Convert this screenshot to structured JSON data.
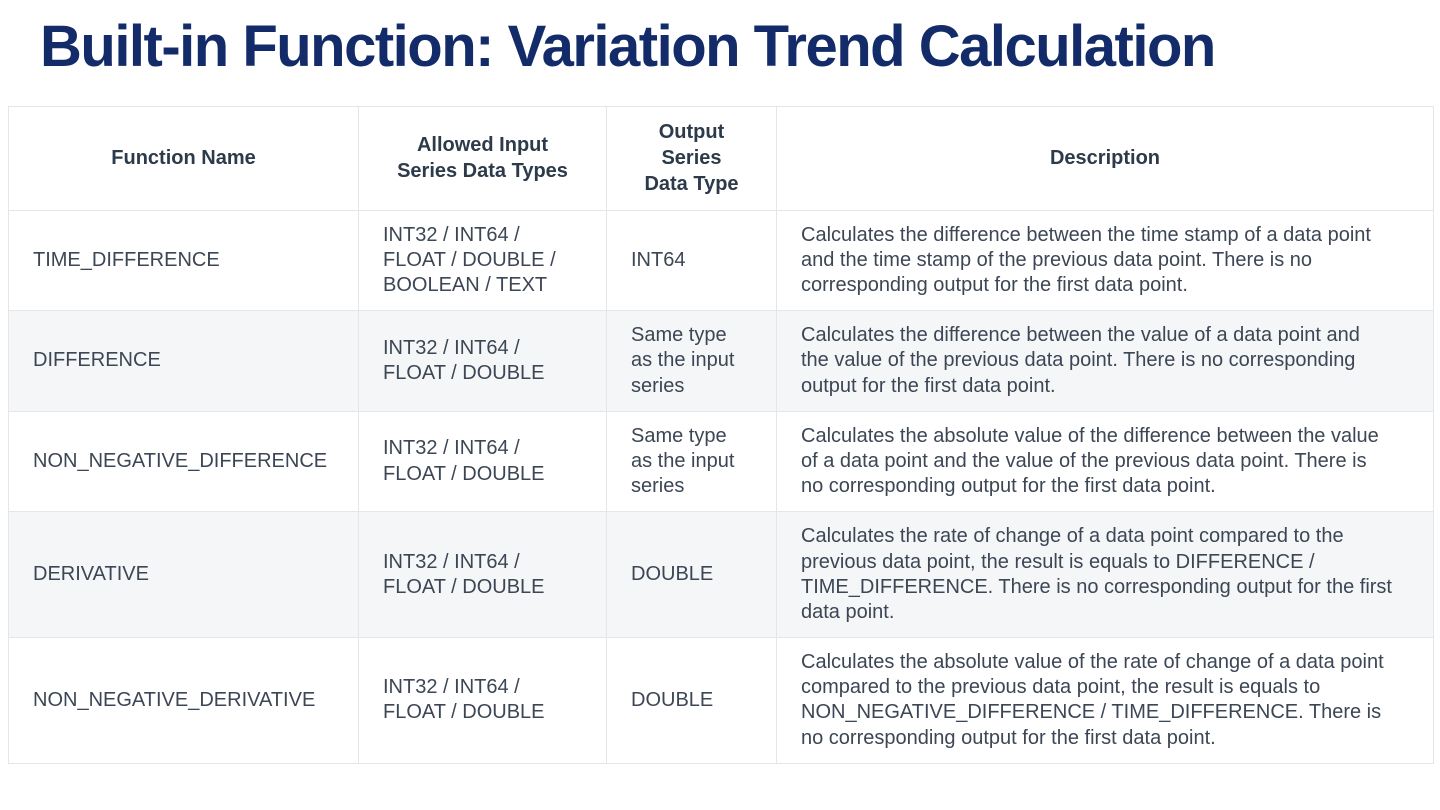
{
  "title": "Built-in Function: Variation Trend Calculation",
  "table": {
    "headers": [
      "Function Name",
      "Allowed Input\nSeries Data Types",
      "Output\nSeries\nData Type",
      "Description"
    ],
    "rows": [
      {
        "function_name": "TIME_DIFFERENCE",
        "input_types": "INT32 / INT64 /\nFLOAT / DOUBLE /\nBOOLEAN / TEXT",
        "output_type": "INT64",
        "description": "Calculates the difference between the time stamp of a data point and the time stamp of the previous data point. There is no corresponding output for the first data point."
      },
      {
        "function_name": "DIFFERENCE",
        "input_types": "INT32 / INT64 /\nFLOAT / DOUBLE",
        "output_type": "Same type\nas the input\nseries",
        "description": "Calculates the difference between the value of a data point and the value of the previous data point. There is no corresponding output for the first data point."
      },
      {
        "function_name": "NON_NEGATIVE_DIFFERENCE",
        "input_types": "INT32 / INT64 /\nFLOAT / DOUBLE",
        "output_type": "Same type\nas the input\nseries",
        "description": "Calculates the absolute value of the difference between the value of a data point and the value of the previous data point. There is no corresponding output for the first data point."
      },
      {
        "function_name": "DERIVATIVE",
        "input_types": "INT32 / INT64 /\nFLOAT / DOUBLE",
        "output_type": "DOUBLE",
        "description": "Calculates the rate of change of a data point compared to the previous data point, the result is equals to DIFFERENCE / TIME_DIFFERENCE. There is no corresponding output for the first data point."
      },
      {
        "function_name": "NON_NEGATIVE_DERIVATIVE",
        "input_types": "INT32 / INT64 /\nFLOAT / DOUBLE",
        "output_type": "DOUBLE",
        "description": "Calculates the absolute value of the rate of change of a data point compared to the previous data point, the result is equals to NON_NEGATIVE_DIFFERENCE / TIME_DIFFERENCE. There is no corresponding output for the first data point."
      }
    ]
  }
}
